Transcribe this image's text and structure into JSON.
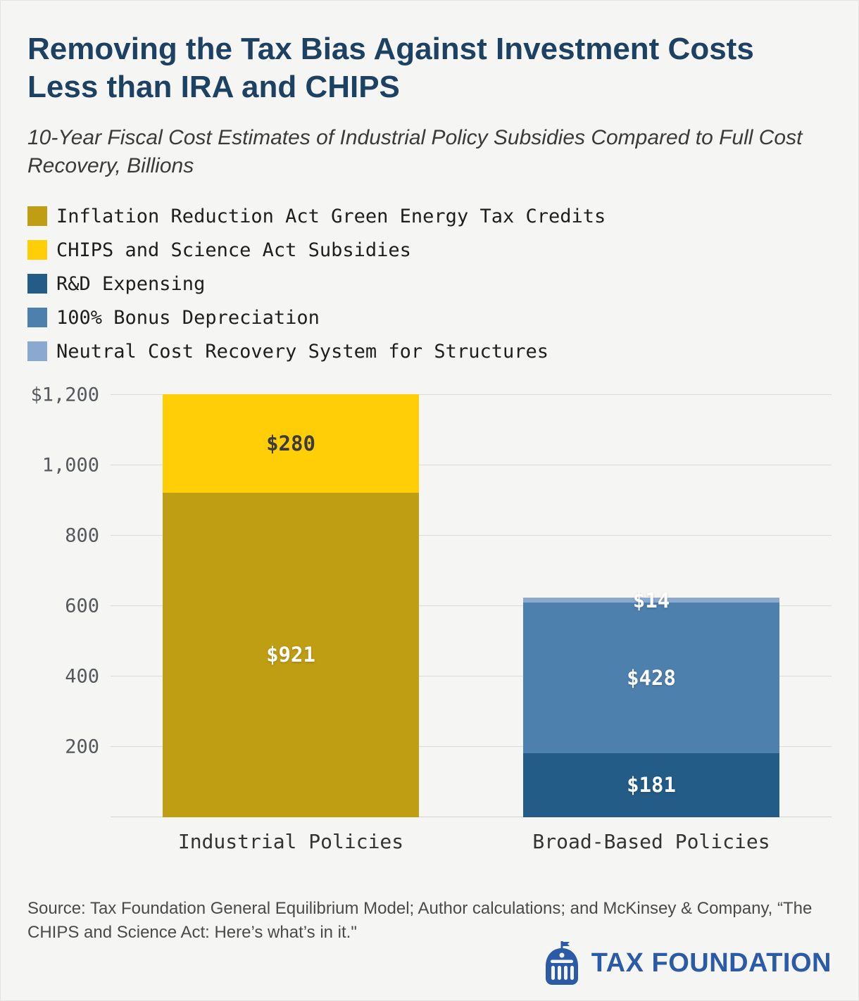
{
  "header": {
    "title": "Removing the Tax Bias Against Investment Costs Less than IRA and CHIPS",
    "subtitle": "10-Year Fiscal Cost Estimates of Industrial Policy Subsidies Compared to Full Cost Recovery, Billions"
  },
  "theme": {
    "background": "#F5F5F3",
    "title_color": "#1D4163",
    "brand_blue": "#2B5BA7",
    "gridline_color": "#DBDBD8"
  },
  "chart_data": {
    "type": "bar",
    "stacked": true,
    "unit": "billions of dollars",
    "categories": [
      "Industrial Policies",
      "Broad-Based Policies"
    ],
    "series": [
      {
        "name": "Inflation Reduction Act Green Energy Tax Credits",
        "color": "#BF9E14",
        "label_color": "#FFFFFF",
        "values": [
          921,
          0
        ]
      },
      {
        "name": "CHIPS and Science Act Subsidies",
        "color": "#FFCE07",
        "label_color": "#3B3B3B",
        "values": [
          280,
          0
        ]
      },
      {
        "name": "R&D Expensing",
        "color": "#235C87",
        "label_color": "#FFFFFF",
        "values": [
          0,
          181
        ]
      },
      {
        "name": "100% Bonus Depreciation",
        "color": "#4E80AE",
        "label_color": "#FFFFFF",
        "values": [
          0,
          428
        ]
      },
      {
        "name": "Neutral Cost Recovery System for Structures",
        "color": "#89A9D1",
        "label_color": "#FFFFFF",
        "values": [
          0,
          14
        ]
      }
    ],
    "value_prefix": "$",
    "ylim": [
      0,
      1200
    ],
    "yticks": [
      200,
      400,
      600,
      800,
      1000,
      1200
    ],
    "ytick_labels": [
      "200",
      "400",
      "600",
      "800",
      "1,000",
      "$1,200"
    ],
    "grid": true,
    "legend_position": "top-left"
  },
  "source": {
    "text": "Source: Tax Foundation General Equilibrium Model; Author calculations; and McKinsey & Company, “The CHIPS and Science Act: Here’s what’s in it.\""
  },
  "footer": {
    "brand": "TAX FOUNDATION"
  }
}
